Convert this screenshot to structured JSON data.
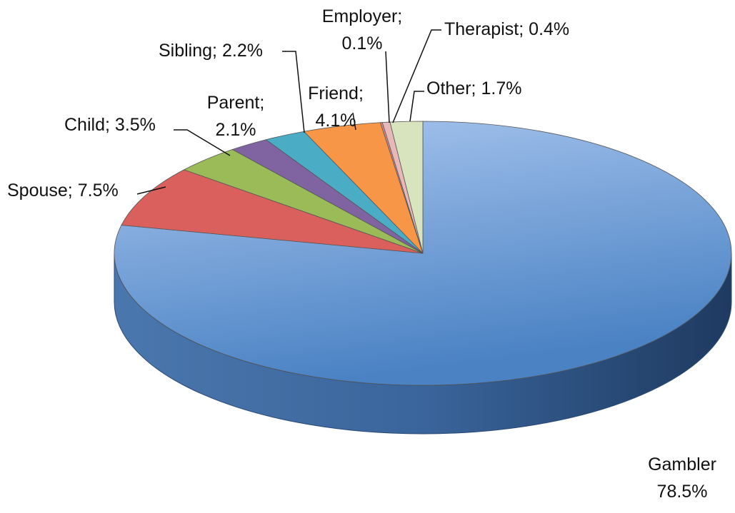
{
  "chart_data": {
    "type": "pie",
    "style": "3d",
    "categories": [
      "Gambler",
      "Spouse;",
      "Child;",
      "Parent;",
      "Sibling;",
      "Friend;",
      "Employer;",
      "Therapist;",
      "Other;"
    ],
    "values": [
      78.5,
      7.5,
      3.5,
      2.1,
      2.2,
      4.1,
      0.1,
      0.4,
      1.7
    ],
    "value_labels": [
      "78.5%",
      "7.5%",
      "3.5%",
      "2.1%",
      "2.2%",
      "4.1%",
      "0.1%",
      "0.4%",
      "1.7%"
    ],
    "colors": [
      "#5b8cc9",
      "#d9605c",
      "#9bbb59",
      "#8064a2",
      "#4bacc6",
      "#f79646",
      "#e6898a",
      "#e6b9b8",
      "#d7e4bd"
    ]
  }
}
